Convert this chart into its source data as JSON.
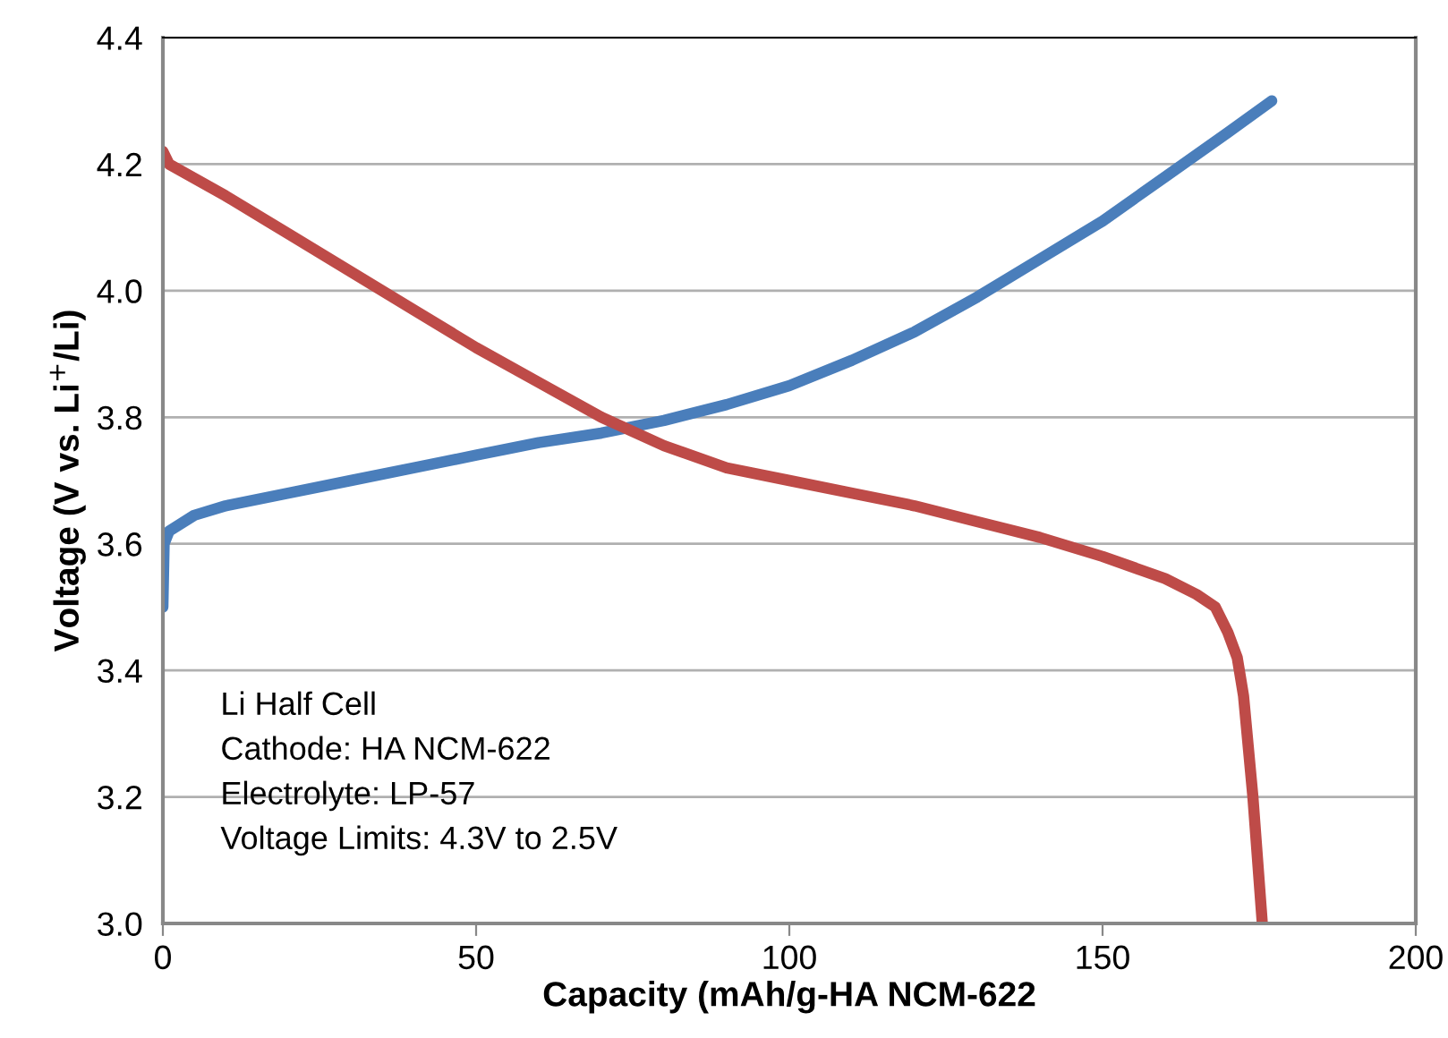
{
  "chart_data": {
    "type": "line",
    "xlabel": "Capacity (mAh/g-HA NCM-622",
    "ylabel": "Voltage (V vs. Li$^{+}$/Li)",
    "xlim": [
      0,
      200
    ],
    "xticks": [
      0,
      50,
      100,
      150,
      200
    ],
    "ylim": [
      3.0,
      4.4
    ],
    "yticks": [
      {
        "value": 3.0,
        "label": "3.0"
      },
      {
        "value": 3.2,
        "label": "3.2"
      },
      {
        "value": 3.4,
        "label": "3.4"
      },
      {
        "value": 3.6,
        "label": "3.6"
      },
      {
        "value": 3.8,
        "label": "3.8"
      },
      {
        "value": 4.0,
        "label": "4.0"
      },
      {
        "value": 4.2,
        "label": "4.2"
      },
      {
        "value": 4.4,
        "label": "4.4"
      }
    ],
    "grid": "y",
    "legend": false,
    "marker": "none",
    "line_style": "solid",
    "series": [
      {
        "color": "#4a7ebb",
        "x": [
          0,
          0.2,
          1,
          5,
          10,
          20,
          30,
          40,
          50,
          60,
          70,
          80,
          90,
          100,
          110,
          120,
          130,
          140,
          150,
          160,
          170,
          177
        ],
        "values": [
          3.5,
          3.6,
          3.62,
          3.645,
          3.66,
          3.68,
          3.7,
          3.72,
          3.74,
          3.76,
          3.775,
          3.795,
          3.82,
          3.85,
          3.89,
          3.935,
          3.99,
          4.05,
          4.11,
          4.18,
          4.25,
          4.3
        ]
      },
      {
        "color": "#be4b48",
        "x": [
          0,
          1,
          10,
          20,
          30,
          40,
          50,
          60,
          70,
          80,
          90,
          100,
          110,
          120,
          130,
          140,
          150,
          160,
          165,
          168,
          170,
          171.5,
          172.5,
          174,
          175.5
        ],
        "values": [
          4.22,
          4.2,
          4.15,
          4.09,
          4.03,
          3.97,
          3.91,
          3.855,
          3.8,
          3.755,
          3.72,
          3.7,
          3.68,
          3.66,
          3.635,
          3.61,
          3.58,
          3.545,
          3.52,
          3.5,
          3.46,
          3.42,
          3.36,
          3.2,
          3.0
        ]
      }
    ],
    "annotations": [
      "Li Half Cell",
      "Cathode: HA NCM-622",
      "Electrolyte: LP-57",
      "Voltage Limits: 4.3V to 2.5V"
    ]
  }
}
